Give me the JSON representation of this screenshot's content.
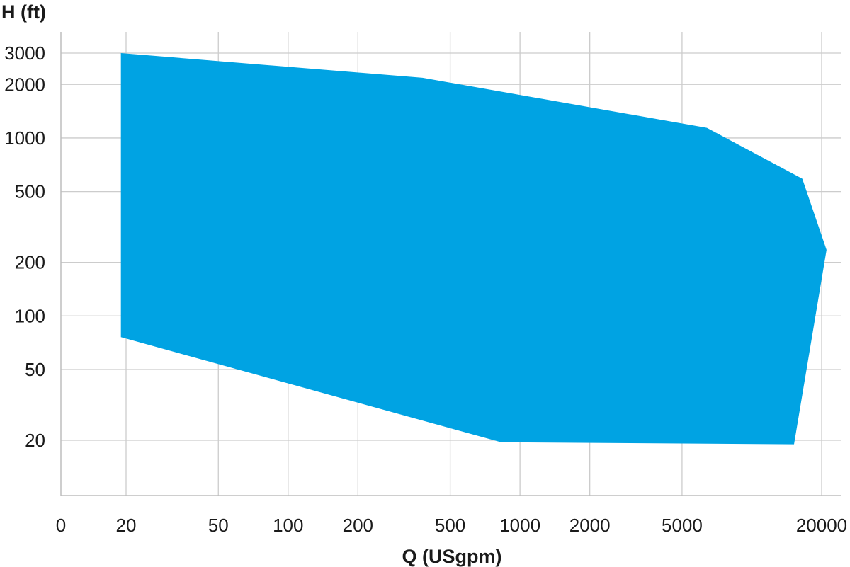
{
  "chart_data": {
    "type": "area",
    "xlabel": "Q (USgpm)",
    "ylabel": "H (ft)",
    "x_scale": "log",
    "y_scale": "log",
    "x_ticks": [
      {
        "label": "0",
        "value": null
      },
      {
        "label": "20",
        "value": 20
      },
      {
        "label": "50",
        "value": 50
      },
      {
        "label": "100",
        "value": 100
      },
      {
        "label": "200",
        "value": 200
      },
      {
        "label": "500",
        "value": 500
      },
      {
        "label": "1000",
        "value": 1000
      },
      {
        "label": "2000",
        "value": 2000
      },
      {
        "label": "5000",
        "value": 5000
      },
      {
        "label": "20000",
        "value": 20000
      }
    ],
    "x_gridlines": [
      20,
      50,
      100,
      200,
      500,
      1000,
      2000,
      5000,
      20000
    ],
    "y_ticks": [
      {
        "label": "3000",
        "value": 3000
      },
      {
        "label": "2000",
        "value": 2000
      },
      {
        "label": "1000",
        "value": 1000
      },
      {
        "label": "500",
        "value": 500
      },
      {
        "label": "200",
        "value": 200
      },
      {
        "label": "100",
        "value": 100
      },
      {
        "label": "50",
        "value": 50
      },
      {
        "label": "20",
        "value": 20
      }
    ],
    "grid": true,
    "series": [
      {
        "color": "#00a3e3",
        "points": [
          {
            "x": 19,
            "y": 3000
          },
          {
            "x": 380,
            "y": 2180
          },
          {
            "x": 6400,
            "y": 1140
          },
          {
            "x": 16500,
            "y": 590
          },
          {
            "x": 21000,
            "y": 235
          },
          {
            "x": 15200,
            "y": 19
          },
          {
            "x": 830,
            "y": 19.5
          },
          {
            "x": 19,
            "y": 76
          }
        ]
      }
    ]
  }
}
